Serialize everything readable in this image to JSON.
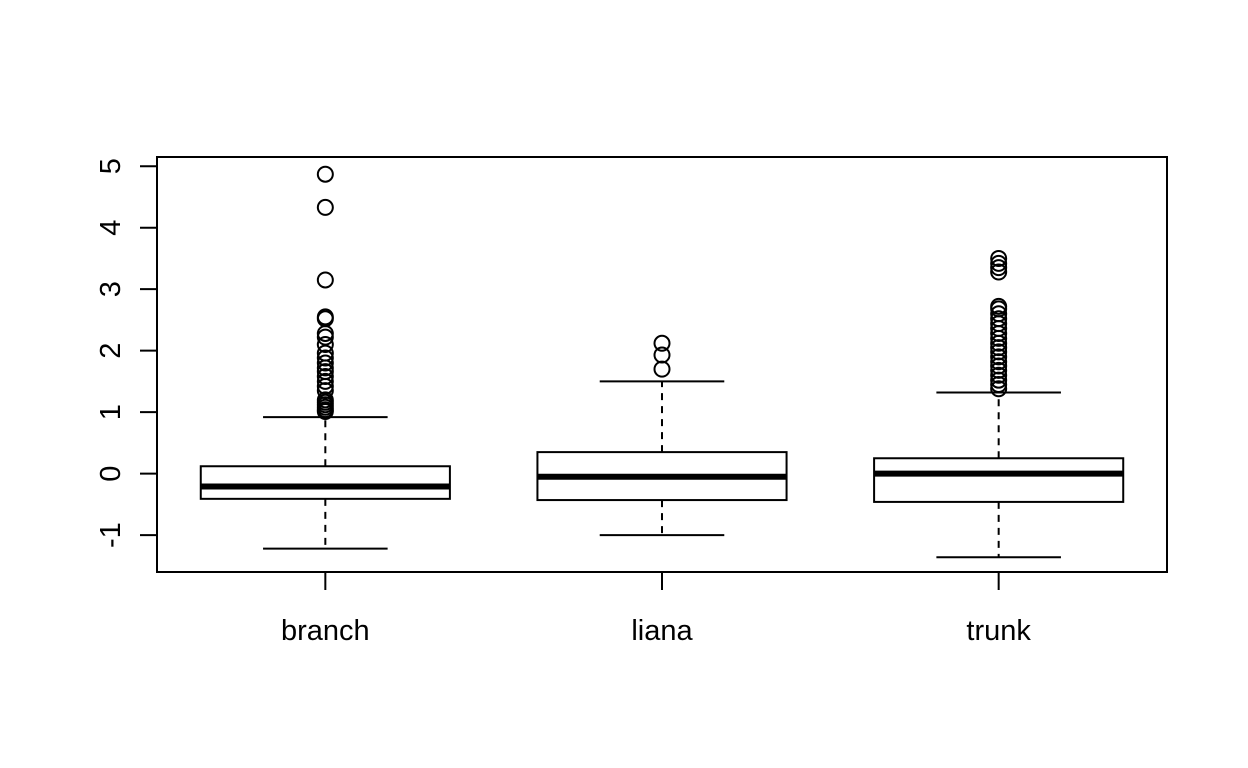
{
  "chart_data": {
    "type": "box",
    "title": "",
    "xlabel": "",
    "ylabel": "",
    "ylim": [
      -1.6,
      5.15
    ],
    "y_ticks": [
      {
        "value": -1,
        "label": "-1"
      },
      {
        "value": 0,
        "label": "0"
      },
      {
        "value": 1,
        "label": "1"
      },
      {
        "value": 2,
        "label": "2"
      },
      {
        "value": 3,
        "label": "3"
      },
      {
        "value": 4,
        "label": "4"
      },
      {
        "value": 5,
        "label": "5"
      }
    ],
    "grid": false,
    "categories": [
      "branch",
      "liana",
      "trunk"
    ],
    "boxes": [
      {
        "category": "branch",
        "whisker_low": -1.22,
        "q1": -0.41,
        "median": -0.21,
        "q3": 0.12,
        "whisker_high": 0.92,
        "outliers": [
          1.01,
          1.04,
          1.08,
          1.12,
          1.16,
          1.2,
          1.35,
          1.42,
          1.5,
          1.58,
          1.66,
          1.72,
          1.8,
          1.88,
          1.96,
          2.1,
          2.22,
          2.28,
          2.52,
          2.55,
          3.15,
          4.33,
          4.87
        ]
      },
      {
        "category": "liana",
        "whisker_low": -1.0,
        "q1": -0.43,
        "median": -0.05,
        "q3": 0.35,
        "whisker_high": 1.5,
        "outliers": [
          1.7,
          1.93,
          2.12
        ]
      },
      {
        "category": "trunk",
        "whisker_low": -1.36,
        "q1": -0.46,
        "median": 0.0,
        "q3": 0.25,
        "whisker_high": 1.32,
        "outliers": [
          1.38,
          1.45,
          1.52,
          1.6,
          1.68,
          1.75,
          1.82,
          1.9,
          1.98,
          2.05,
          2.12,
          2.2,
          2.28,
          2.36,
          2.44,
          2.52,
          2.6,
          2.68,
          2.72,
          3.28,
          3.35,
          3.42,
          3.5
        ]
      }
    ]
  }
}
